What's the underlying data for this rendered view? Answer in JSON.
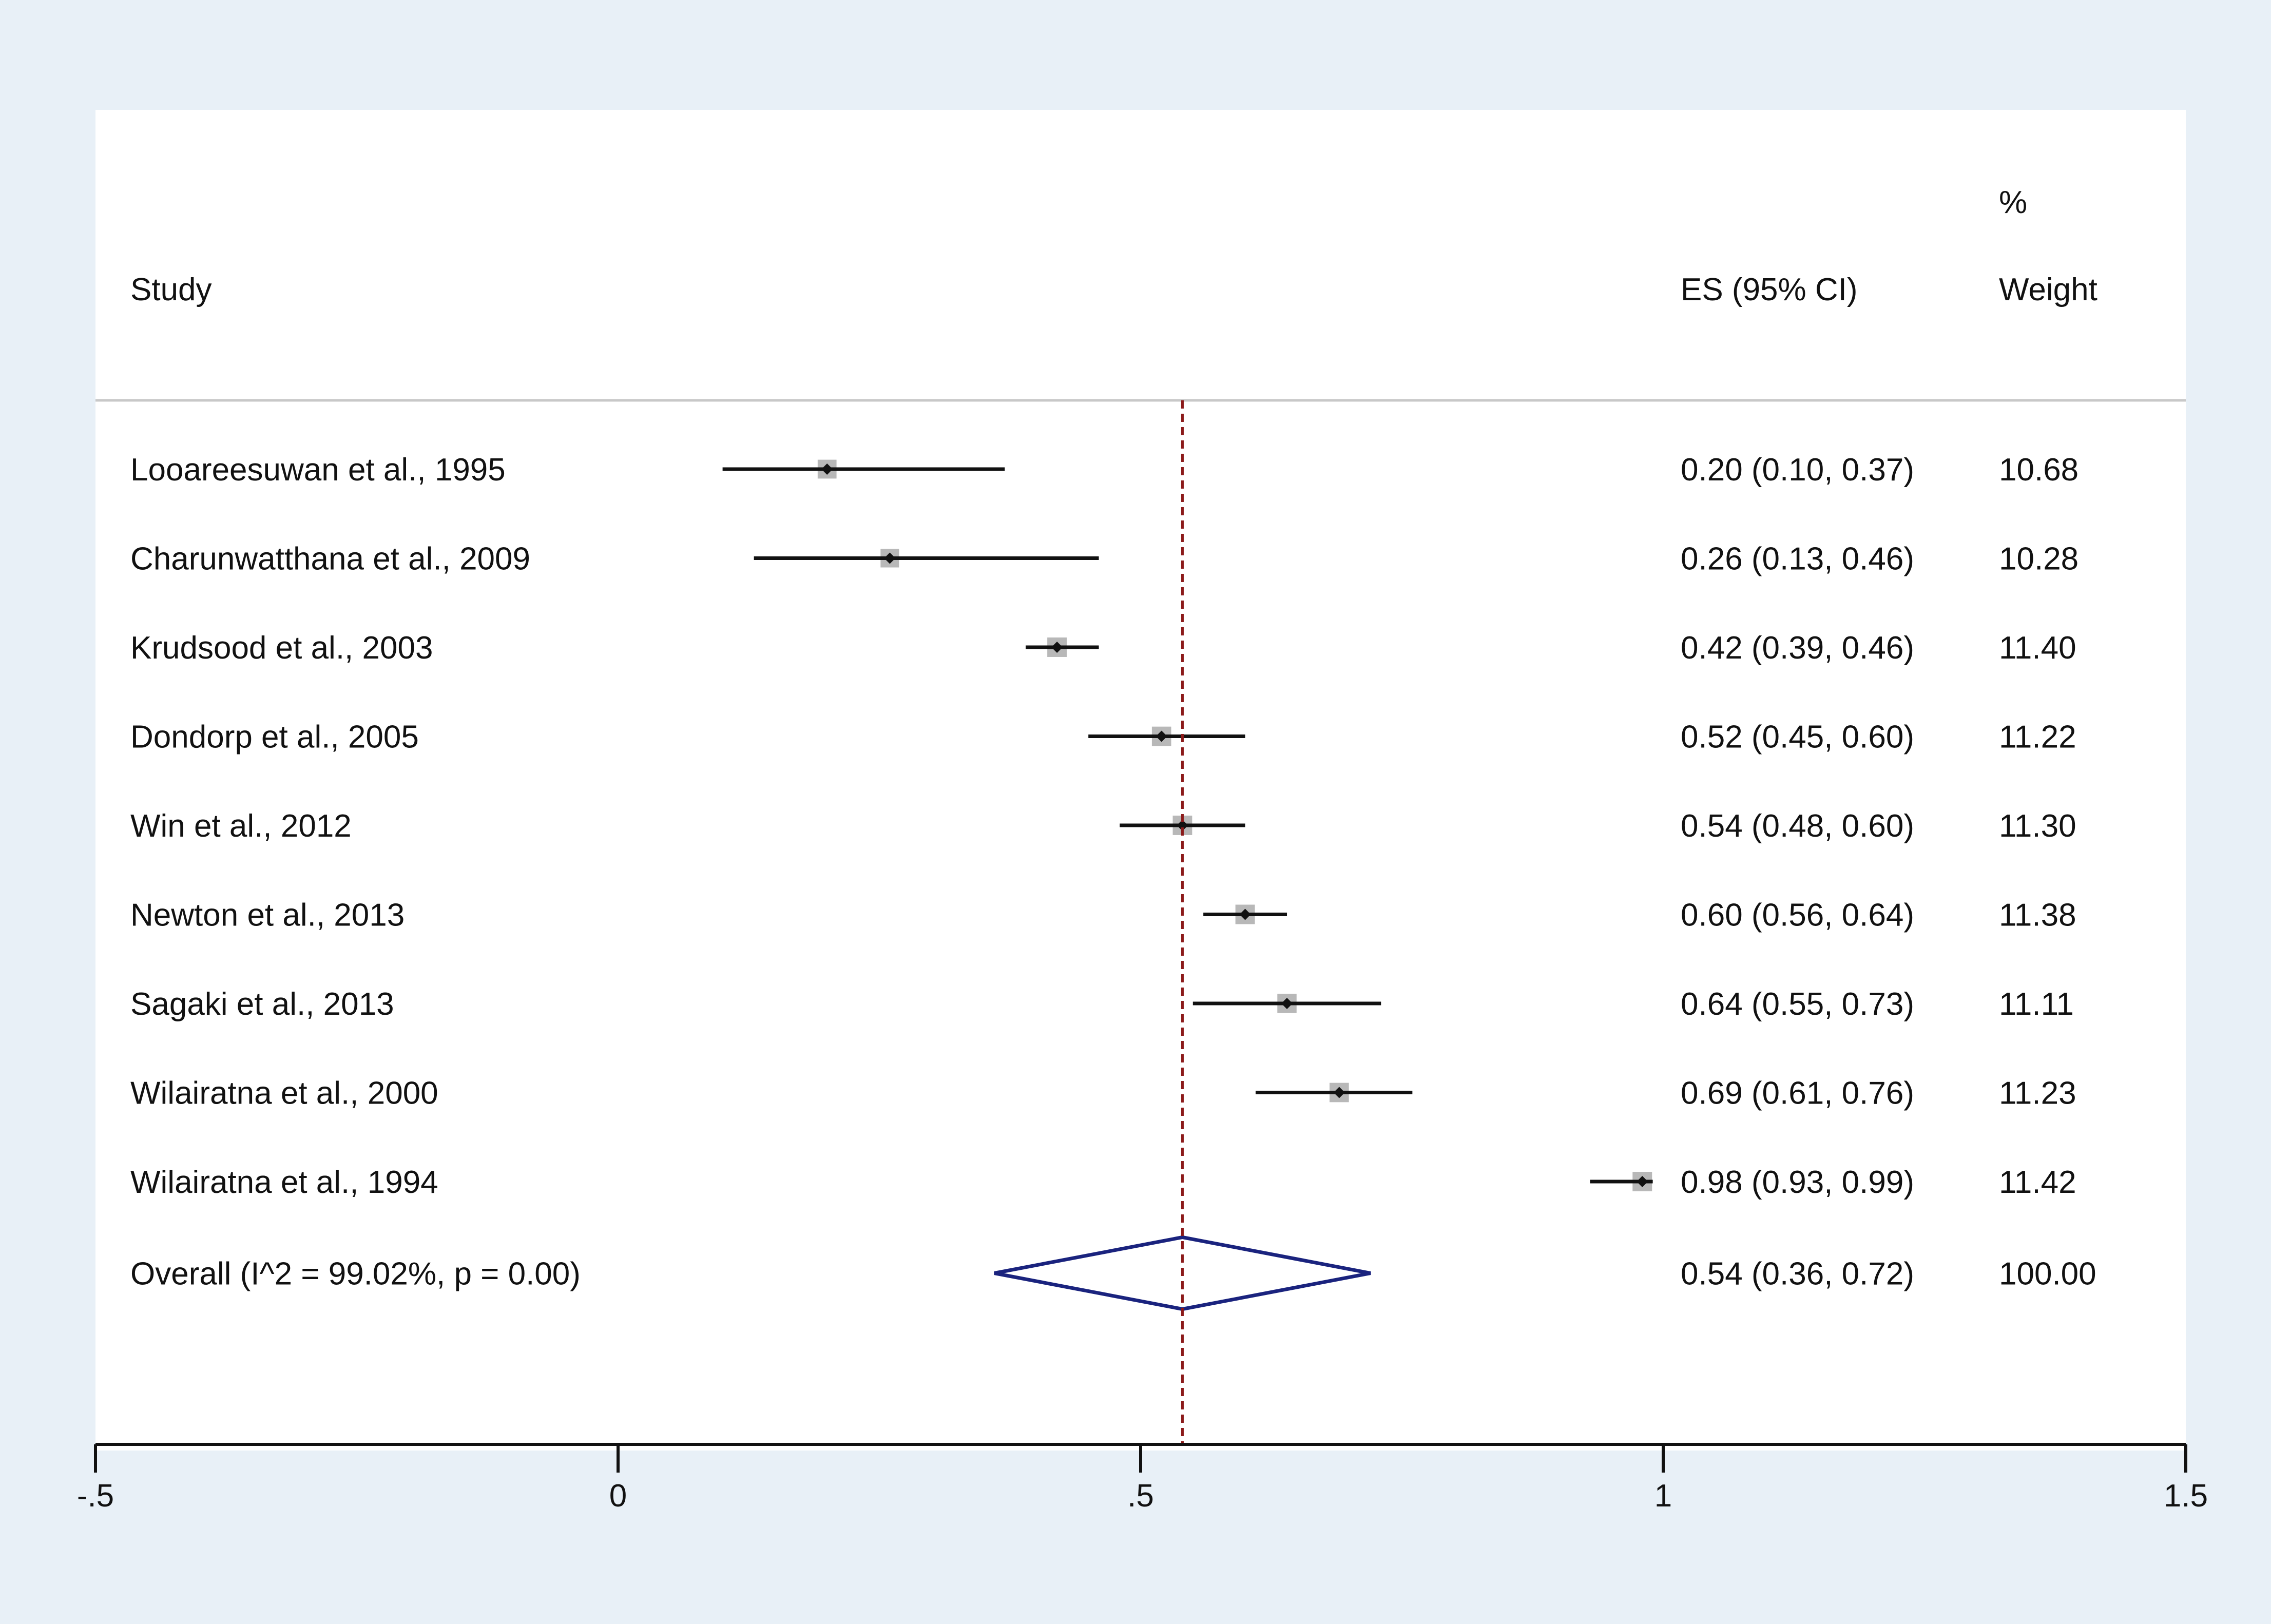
{
  "chart_data": {
    "type": "forest",
    "headers": {
      "study": "Study",
      "es": "ES (95% CI)",
      "weight_pct": "%",
      "weight": "Weight"
    },
    "studies": [
      {
        "label": "Looareesuwan et al., 1995",
        "es": 0.2,
        "lo": 0.1,
        "hi": 0.37,
        "es_text": "0.20 (0.10, 0.37)",
        "weight": 10.68,
        "weight_text": "10.68"
      },
      {
        "label": "Charunwatthana et al., 2009",
        "es": 0.26,
        "lo": 0.13,
        "hi": 0.46,
        "es_text": "0.26 (0.13, 0.46)",
        "weight": 10.28,
        "weight_text": "10.28"
      },
      {
        "label": "Krudsood et al., 2003",
        "es": 0.42,
        "lo": 0.39,
        "hi": 0.46,
        "es_text": "0.42 (0.39, 0.46)",
        "weight": 11.4,
        "weight_text": "11.40"
      },
      {
        "label": "Dondorp et al., 2005",
        "es": 0.52,
        "lo": 0.45,
        "hi": 0.6,
        "es_text": "0.52 (0.45, 0.60)",
        "weight": 11.22,
        "weight_text": "11.22"
      },
      {
        "label": "Win et al., 2012",
        "es": 0.54,
        "lo": 0.48,
        "hi": 0.6,
        "es_text": "0.54 (0.48, 0.60)",
        "weight": 11.3,
        "weight_text": "11.30"
      },
      {
        "label": "Newton et al., 2013",
        "es": 0.6,
        "lo": 0.56,
        "hi": 0.64,
        "es_text": "0.60 (0.56, 0.64)",
        "weight": 11.38,
        "weight_text": "11.38"
      },
      {
        "label": "Sagaki et al., 2013",
        "es": 0.64,
        "lo": 0.55,
        "hi": 0.73,
        "es_text": "0.64 (0.55, 0.73)",
        "weight": 11.11,
        "weight_text": "11.11"
      },
      {
        "label": "Wilairatna et al., 2000",
        "es": 0.69,
        "lo": 0.61,
        "hi": 0.76,
        "es_text": "0.69 (0.61, 0.76)",
        "weight": 11.23,
        "weight_text": "11.23"
      },
      {
        "label": "Wilairatna et al., 1994",
        "es": 0.98,
        "lo": 0.93,
        "hi": 0.99,
        "es_text": "0.98 (0.93, 0.99)",
        "weight": 11.42,
        "weight_text": "11.42"
      }
    ],
    "overall": {
      "label": "Overall  (I^2 = 99.02%, p = 0.00)",
      "es": 0.54,
      "lo": 0.36,
      "hi": 0.72,
      "es_text": "0.54 (0.36, 0.72)",
      "weight": 100.0,
      "weight_text": "100.00"
    },
    "x_axis": {
      "range": [
        -0.5,
        1.5
      ],
      "ticks": [
        -0.5,
        0,
        0.5,
        1,
        1.5
      ],
      "tick_labels": [
        "-.5",
        "0",
        ".5",
        "1",
        "1.5"
      ]
    },
    "colors": {
      "outer_bg": "#e8f0f7",
      "plot_bg": "#ffffff",
      "ci_line": "#111111",
      "weight_box": "#b8b8b8",
      "point": "#111111",
      "diamond": "#1a237e",
      "ref_line": "#8b1a1a",
      "separator": "#c8c8c8",
      "axis": "#111111"
    }
  }
}
